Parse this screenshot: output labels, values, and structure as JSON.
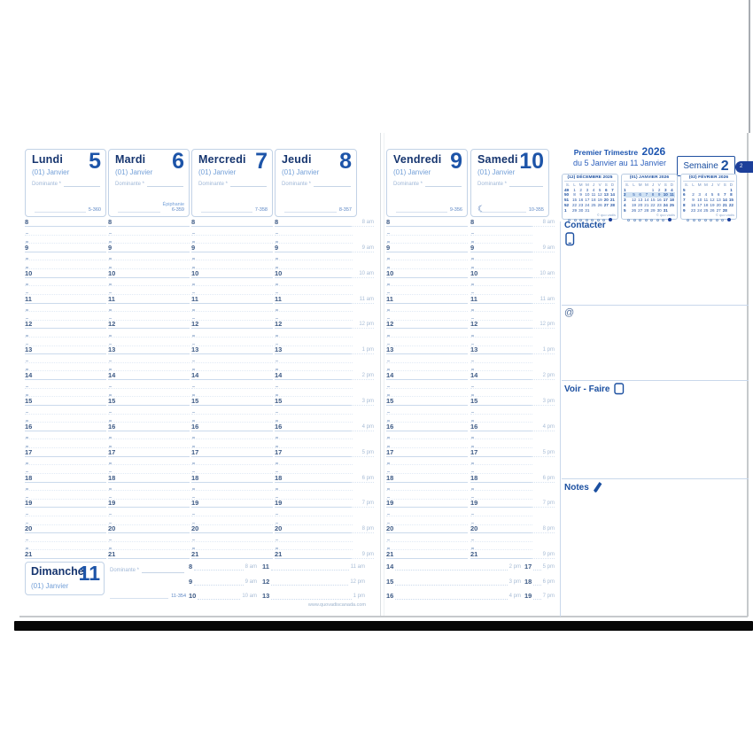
{
  "page": {
    "week_tab": "2",
    "website": "www.quovadiscanada.com"
  },
  "info_header": {
    "trimester": "Premier Trimestre",
    "year": "2026",
    "date_range": "du 5 Janvier au 11 Janvier",
    "week_word": "Semaine",
    "week_number": "2"
  },
  "weekdays": [
    {
      "name": "Lundi",
      "number": "5",
      "month": "(01) Janvier",
      "dominante": "Dominante *",
      "holiday": "",
      "day_count": "5-360",
      "moon": ""
    },
    {
      "name": "Mardi",
      "number": "6",
      "month": "(01) Janvier",
      "dominante": "Dominante *",
      "holiday": "Épiphanie",
      "day_count": "6-359",
      "moon": ""
    },
    {
      "name": "Mercredi",
      "number": "7",
      "month": "(01) Janvier",
      "dominante": "Dominante *",
      "holiday": "",
      "day_count": "7-358",
      "moon": ""
    },
    {
      "name": "Jeudi",
      "number": "8",
      "month": "(01) Janvier",
      "dominante": "Dominante *",
      "holiday": "",
      "day_count": "8-357",
      "moon": ""
    },
    {
      "name": "Vendredi",
      "number": "9",
      "month": "(01) Janvier",
      "dominante": "Dominante *",
      "holiday": "",
      "day_count": "9-356",
      "moon": ""
    },
    {
      "name": "Samedi",
      "number": "10",
      "month": "(01) Janvier",
      "dominante": "Dominante *",
      "holiday": "",
      "day_count": "10-355",
      "moon": "☾"
    }
  ],
  "sunday": {
    "name": "Dimanche",
    "number": "11",
    "month": "(01) Janvier",
    "dominante": "Dominante *",
    "day_count": "11-354"
  },
  "time_grid": {
    "hours": [
      "8",
      "9",
      "10",
      "11",
      "12",
      "13",
      "14",
      "15",
      "16",
      "17",
      "18",
      "19",
      "20",
      "21"
    ],
    "ampm": [
      "8 am",
      "9 am",
      "10 am",
      "11 am",
      "12 pm",
      "1 pm",
      "2 pm",
      "3 pm",
      "4 pm",
      "5 pm",
      "6 pm",
      "7 pm",
      "8 pm",
      "9 pm"
    ]
  },
  "sunday_grid": [
    {
      "hours": [
        "8",
        "9",
        "10"
      ],
      "ampm": [
        "8 am",
        "9 am",
        "10 am"
      ]
    },
    {
      "hours": [
        "11",
        "12",
        "13"
      ],
      "ampm": [
        "11 am",
        "12 pm",
        "1 pm"
      ]
    },
    {
      "hours": [
        "14",
        "15",
        "16"
      ],
      "ampm": [
        "2 pm",
        "3 pm",
        "4 pm"
      ]
    },
    {
      "hours": [
        "17",
        "18",
        "19"
      ],
      "ampm": [
        "5 pm",
        "6 pm",
        "7 pm"
      ]
    }
  ],
  "mini_calendars": [
    {
      "title": "(12) DÉCEMBRE 2025",
      "dow": [
        "S.",
        "L",
        "M",
        "M",
        "J",
        "V",
        "S",
        "D"
      ],
      "weeks": [
        [
          "49",
          "1",
          "2",
          "3",
          "4",
          "5",
          "6",
          "7"
        ],
        [
          "50",
          "8",
          "9",
          "10",
          "11",
          "12",
          "13",
          "14"
        ],
        [
          "51",
          "15",
          "16",
          "17",
          "18",
          "19",
          "20",
          "21"
        ],
        [
          "52",
          "22",
          "23",
          "24",
          "25",
          "26",
          "27",
          "28"
        ],
        [
          "1",
          "29",
          "30",
          "31",
          "",
          "",
          "",
          ""
        ]
      ],
      "highlight_week": -1,
      "copyright": "© quo vadis"
    },
    {
      "title": "(01) JANVIER 2026",
      "dow": [
        "S.",
        "L",
        "M",
        "M",
        "J",
        "V",
        "S",
        "D"
      ],
      "weeks": [
        [
          "1",
          "",
          "",
          "",
          "1",
          "2",
          "3",
          "4"
        ],
        [
          "2",
          "5",
          "6",
          "7",
          "8",
          "9",
          "10",
          "11"
        ],
        [
          "3",
          "12",
          "13",
          "14",
          "15",
          "16",
          "17",
          "18"
        ],
        [
          "4",
          "19",
          "20",
          "21",
          "22",
          "23",
          "24",
          "25"
        ],
        [
          "5",
          "26",
          "27",
          "28",
          "29",
          "30",
          "31",
          ""
        ]
      ],
      "highlight_week": 1,
      "copyright": "© quo vadis"
    },
    {
      "title": "(02) FÉVRIER 2026",
      "dow": [
        "S.",
        "L",
        "M",
        "M",
        "J",
        "V",
        "S",
        "D"
      ],
      "weeks": [
        [
          "5",
          "",
          "",
          "",
          "",
          "",
          "",
          "1"
        ],
        [
          "6",
          "2",
          "3",
          "4",
          "5",
          "6",
          "7",
          "8"
        ],
        [
          "7",
          "9",
          "10",
          "11",
          "12",
          "13",
          "14",
          "15"
        ],
        [
          "8",
          "16",
          "17",
          "18",
          "19",
          "20",
          "21",
          "22"
        ],
        [
          "9",
          "23",
          "24",
          "25",
          "26",
          "27",
          "28",
          ""
        ]
      ],
      "highlight_week": -1,
      "copyright": "© quo vadis"
    }
  ],
  "sections": {
    "contacter": "Contacter",
    "at": "@",
    "voir_faire": "Voir - Faire",
    "notes": "Notes"
  },
  "colors": {
    "navy": "#16356f",
    "royal_blue": "#1d54a8",
    "light_blue_text": "#74a0d8",
    "grid_line": "#cbdaec",
    "highlight_row": "#cfe1f3",
    "tab_bg": "#1c3f9a",
    "cover": "#060606"
  }
}
